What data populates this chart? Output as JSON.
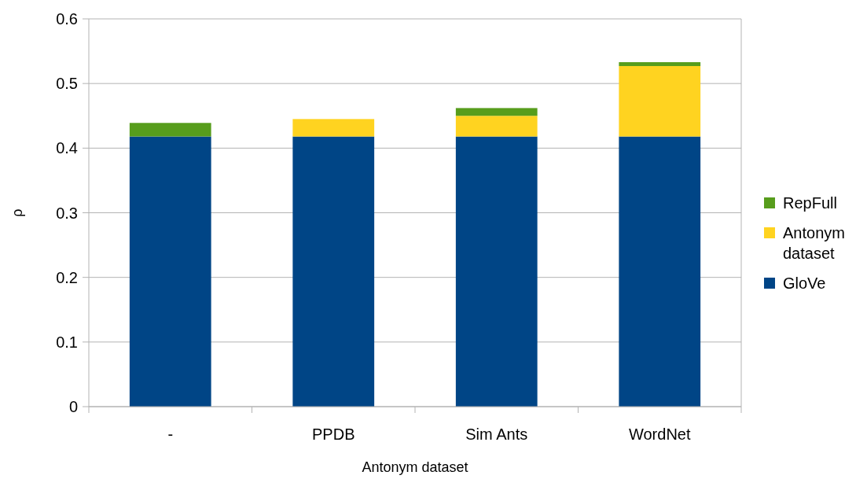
{
  "chart_data": {
    "type": "bar",
    "stacked": true,
    "xlabel": "Antonym dataset",
    "ylabel": "ρ",
    "categories": [
      "-",
      "PPDB",
      "Sim Ants",
      "WordNet"
    ],
    "series": [
      {
        "name": "GloVe",
        "color": "#004586",
        "values": [
          0.418,
          0.418,
          0.418,
          0.418
        ]
      },
      {
        "name": "Antonym dataset",
        "color": "#ffd320",
        "values": [
          null,
          0.027,
          0.032,
          0.109
        ]
      },
      {
        "name": "RepFull",
        "color": "#579d1c",
        "values": [
          0.021,
          null,
          0.012,
          0.006
        ]
      }
    ],
    "ylim": [
      0,
      0.6
    ],
    "yticks": [
      0,
      0.1,
      0.2,
      0.3,
      0.4,
      0.5,
      0.6
    ],
    "grid": "y",
    "legend": "right"
  }
}
